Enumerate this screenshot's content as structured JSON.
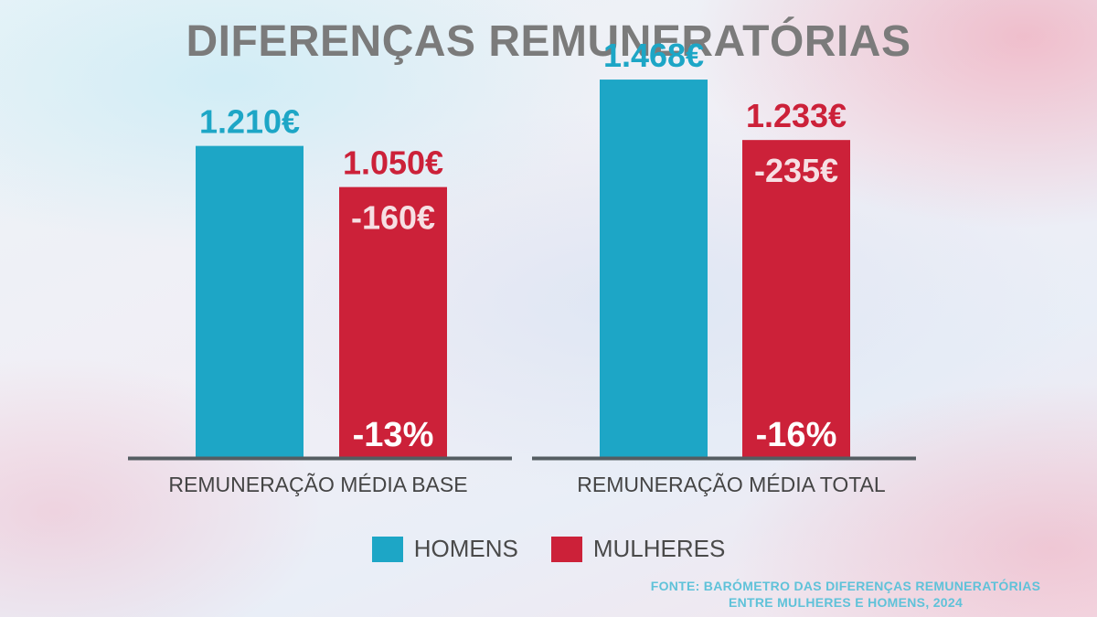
{
  "title": "DIFERENÇAS REMUNERATÓRIAS",
  "colors": {
    "homens": "#1da6c6",
    "mulheres": "#cc2139",
    "axis": "#555d62",
    "category_text": "#444444"
  },
  "chart_data": {
    "type": "bar",
    "categories": [
      "REMUNERAÇÃO MÉDIA BASE",
      "REMUNERAÇÃO MÉDIA TOTAL"
    ],
    "series": [
      {
        "name": "HOMENS",
        "values": [
          1210,
          1468
        ],
        "labels": [
          "1.210€",
          "1.468€"
        ]
      },
      {
        "name": "MULHERES",
        "values": [
          1050,
          1233
        ],
        "labels": [
          "1.050€",
          "1.233€"
        ]
      }
    ],
    "differences": [
      "-160€",
      "-235€"
    ],
    "percent_differences": [
      "-13%",
      "-16%"
    ],
    "ylim": [
      0,
      1550
    ],
    "grid": false,
    "legend_position": "bottom-center"
  },
  "legend": {
    "items": [
      {
        "label": "HOMENS",
        "color": "#1da6c6"
      },
      {
        "label": "MULHERES",
        "color": "#cc2139"
      }
    ]
  },
  "source": {
    "line1": "FONTE: BARÓMETRO DAS DIFERENÇAS REMUNERATÓRIAS",
    "line2": "ENTRE MULHERES E HOMENS, 2024"
  }
}
